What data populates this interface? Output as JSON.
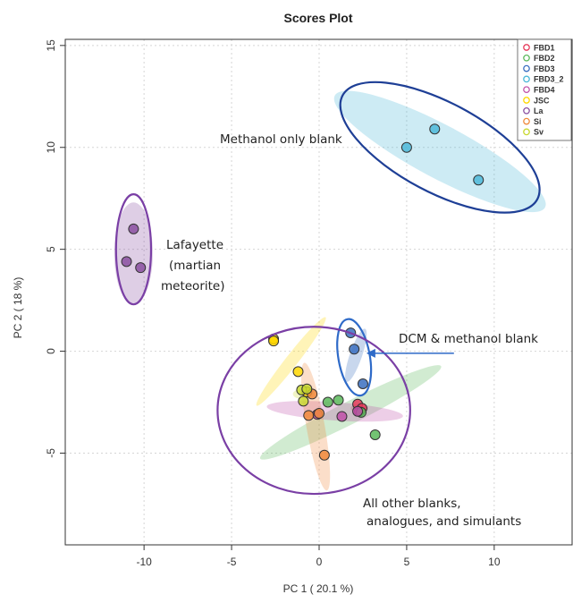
{
  "chart_data": {
    "type": "scatter",
    "title": "Scores Plot",
    "xlabel": "PC 1 ( 20.1 %)",
    "ylabel": "PC 2 ( 18 %)",
    "xlim": [
      -14.5,
      14.5
    ],
    "ylim": [
      -9.5,
      15.3
    ],
    "x_ticks": [
      -10,
      -5,
      0,
      5,
      10
    ],
    "y_ticks": [
      -5,
      0,
      5,
      10,
      15
    ],
    "grid": true,
    "legend_position": "top-right",
    "series": [
      {
        "name": "FBD1",
        "color": "#e63a5a",
        "points": [
          [
            2.2,
            -2.6
          ],
          [
            2.3,
            -2.95
          ],
          [
            2.45,
            -2.8
          ]
        ],
        "ellipse": {
          "cx": 2.3,
          "cy": -2.8,
          "rx": 0.5,
          "ry": 0.2,
          "angle": 0
        }
      },
      {
        "name": "FBD2",
        "color": "#5bb85b",
        "points": [
          [
            0.5,
            -2.5
          ],
          [
            1.1,
            -2.4
          ],
          [
            3.2,
            -4.1
          ],
          [
            2.4,
            -3.0
          ]
        ],
        "ellipse": {
          "cx": 1.8,
          "cy": -3.0,
          "rx": 5.8,
          "ry": 0.55,
          "angle": -27
        }
      },
      {
        "name": "FBD3",
        "color": "#3a6fc0",
        "points": [
          [
            1.8,
            0.9
          ],
          [
            2.0,
            0.1
          ],
          [
            2.5,
            -1.6
          ]
        ],
        "ellipse": {
          "cx": 2.1,
          "cy": -0.2,
          "rx": 1.6,
          "ry": 0.3,
          "angle": -71
        }
      },
      {
        "name": "FBD3_2",
        "color": "#4cb8d8",
        "points": [
          [
            5.0,
            10.0
          ],
          [
            6.6,
            10.9
          ],
          [
            9.1,
            8.4
          ]
        ],
        "ellipse": {
          "cx": 6.9,
          "cy": 9.8,
          "rx": 6.8,
          "ry": 1.3,
          "angle": 28
        }
      },
      {
        "name": "FBD4",
        "color": "#c050a8",
        "points": [
          [
            -0.1,
            -3.1
          ],
          [
            1.3,
            -3.2
          ],
          [
            2.2,
            -2.95
          ]
        ],
        "ellipse": {
          "cx": 0.9,
          "cy": -2.95,
          "rx": 3.9,
          "ry": 0.45,
          "angle": 4
        }
      },
      {
        "name": "JSC",
        "color": "#ffd700",
        "points": [
          [
            -2.6,
            0.6
          ],
          [
            -2.6,
            0.5
          ],
          [
            -1.2,
            -1.0
          ],
          [
            -0.7,
            -2.0
          ]
        ],
        "ellipse": {
          "cx": -1.6,
          "cy": -0.5,
          "rx": 3.2,
          "ry": 0.3,
          "angle": -52
        }
      },
      {
        "name": "La",
        "color": "#8a4fa0",
        "points": [
          [
            -10.6,
            6.0
          ],
          [
            -11.0,
            4.4
          ],
          [
            -10.2,
            4.1
          ]
        ],
        "ellipse": {
          "cx": -10.6,
          "cy": 4.8,
          "rx": 1.1,
          "ry": 2.5,
          "angle": 0
        }
      },
      {
        "name": "Si",
        "color": "#f08a3c",
        "points": [
          [
            -0.4,
            -2.1
          ],
          [
            -0.6,
            -3.15
          ],
          [
            0.3,
            -5.1
          ],
          [
            0.0,
            -3.05
          ]
        ],
        "ellipse": {
          "cx": -0.2,
          "cy": -3.7,
          "rx": 3.7,
          "ry": 0.45,
          "angle": 80
        }
      },
      {
        "name": "Sv",
        "color": "#c8d830",
        "points": [
          [
            -1.0,
            -1.9
          ],
          [
            -0.7,
            -1.85
          ],
          [
            -0.9,
            -2.45
          ]
        ],
        "ellipse": {
          "cx": -0.9,
          "cy": -2.1,
          "rx": 0.6,
          "ry": 0.25,
          "angle": 0
        }
      }
    ],
    "outlines": [
      {
        "target": "Methanol",
        "color": "#1e3f96",
        "cx": 6.9,
        "cy": 10.0,
        "rx": 6.3,
        "ry": 2.2,
        "angle": 28
      },
      {
        "target": "Lafayette",
        "color": "#7a3fa5",
        "cx": -10.6,
        "cy": 5.0,
        "rx": 1.0,
        "ry": 2.7,
        "angle": 0
      },
      {
        "target": "DCM",
        "color": "#2e6ac8",
        "cx": 2.0,
        "cy": -0.3,
        "rx": 0.9,
        "ry": 1.9,
        "angle": -10
      },
      {
        "target": "Others",
        "color": "#7a3fa5",
        "cx": -0.3,
        "cy": -2.9,
        "rx": 5.5,
        "ry": 4.1,
        "angle": 0
      }
    ],
    "annotations": {
      "methanol": "Methanol only blank",
      "lafayette_1": "Lafayette",
      "lafayette_2": "(martian",
      "lafayette_3": "meteorite)",
      "dcm": "DCM & methanol blank",
      "others_1": "All other blanks,",
      "others_2": "analogues, and simulants"
    },
    "dcm_arrow": {
      "from": [
        7.7,
        -0.1
      ],
      "to": [
        2.7,
        -0.1
      ]
    }
  }
}
